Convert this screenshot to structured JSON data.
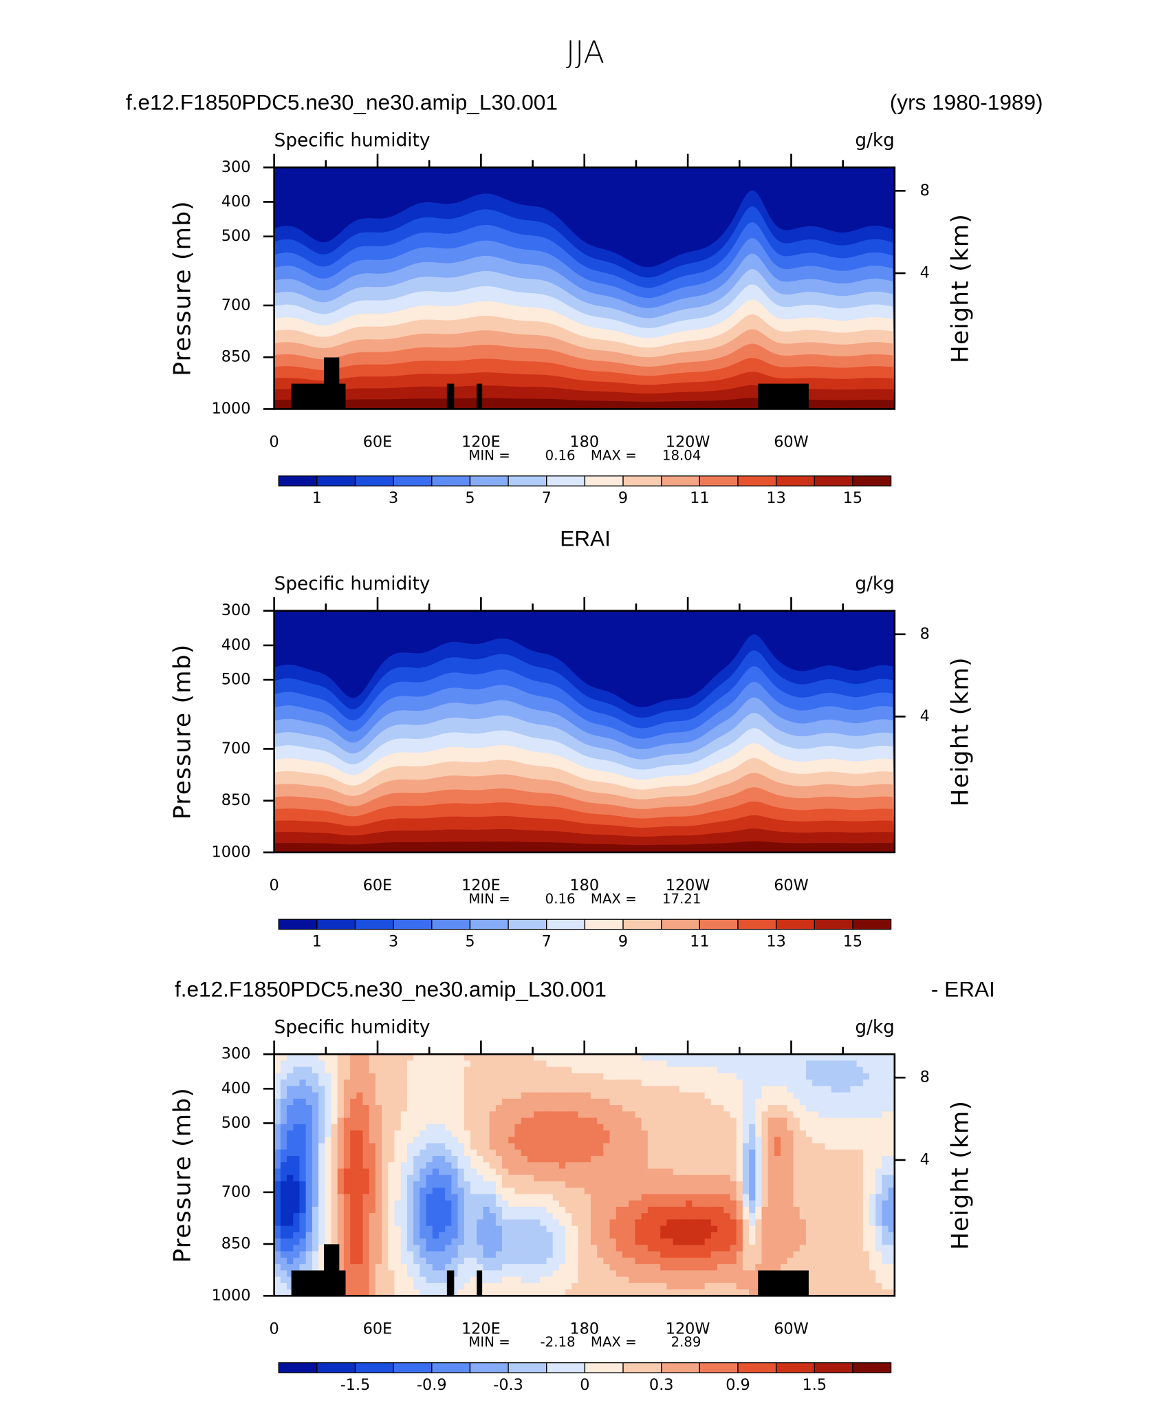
{
  "figure_title": "JJA",
  "chart_data": [
    {
      "type": "contour",
      "title_left": "f.e12.F1850PDC5.ne30_ne30.amip_L30.001",
      "title_right": "(yrs 1980-1989)",
      "subtitle": "Specific humidity",
      "units": "g/kg",
      "ylabel": "Pressure (mb)",
      "y2label": "Height (km)",
      "ylim": [
        1000,
        300
      ],
      "yticks": [
        300,
        400,
        500,
        700,
        850,
        1000
      ],
      "y2ticks": [
        4,
        8
      ],
      "xlim": [
        0,
        360
      ],
      "xticks": [
        0,
        {
          "value": 60,
          "label": "60E"
        },
        {
          "value": 120,
          "label": "120E"
        },
        180,
        {
          "value": 240,
          "label": "120W"
        },
        {
          "value": 300,
          "label": "60W"
        }
      ],
      "min_label": "MIN =",
      "min": 0.16,
      "max_label": "MAX =",
      "max": 18.04,
      "colorbar": {
        "colors": [
          "#03109c",
          "#0a2fc4",
          "#1a4fe0",
          "#3a6ef0",
          "#5d8cf5",
          "#86abf7",
          "#b1cbf8",
          "#d9e6fb",
          "#fdebdc",
          "#f9ccb0",
          "#f4a584",
          "#ef7b56",
          "#e6532f",
          "#cd3216",
          "#a91a0a",
          "#7c0a02"
        ],
        "labels": [
          1,
          3,
          5,
          7,
          9,
          11,
          13,
          15
        ]
      }
    },
    {
      "type": "contour",
      "title": "ERAI",
      "subtitle": "Specific humidity",
      "units": "g/kg",
      "ylabel": "Pressure (mb)",
      "y2label": "Height (km)",
      "ylim": [
        1000,
        300
      ],
      "yticks": [
        300,
        400,
        500,
        700,
        850,
        1000
      ],
      "y2ticks": [
        4,
        8
      ],
      "xlim": [
        0,
        360
      ],
      "xticks": [
        0,
        {
          "value": 60,
          "label": "60E"
        },
        {
          "value": 120,
          "label": "120E"
        },
        180,
        {
          "value": 240,
          "label": "120W"
        },
        {
          "value": 300,
          "label": "60W"
        }
      ],
      "min_label": "MIN =",
      "min": 0.16,
      "max_label": "MAX =",
      "max": 17.21,
      "colorbar": {
        "colors": [
          "#03109c",
          "#0a2fc4",
          "#1a4fe0",
          "#3a6ef0",
          "#5d8cf5",
          "#86abf7",
          "#b1cbf8",
          "#d9e6fb",
          "#fdebdc",
          "#f9ccb0",
          "#f4a584",
          "#ef7b56",
          "#e6532f",
          "#cd3216",
          "#a91a0a",
          "#7c0a02"
        ],
        "labels": [
          1,
          3,
          5,
          7,
          9,
          11,
          13,
          15
        ]
      }
    },
    {
      "type": "contour",
      "title_left": "f.e12.F1850PDC5.ne30_ne30.amip_L30.001",
      "title_right": "- ERAI",
      "subtitle": "Specific humidity",
      "units": "g/kg",
      "ylabel": "Pressure (mb)",
      "y2label": "Height (km)",
      "ylim": [
        1000,
        300
      ],
      "yticks": [
        300,
        400,
        500,
        700,
        850,
        1000
      ],
      "y2ticks": [
        4,
        8
      ],
      "xlim": [
        0,
        360
      ],
      "xticks": [
        0,
        {
          "value": 60,
          "label": "60E"
        },
        {
          "value": 120,
          "label": "120E"
        },
        180,
        {
          "value": 240,
          "label": "120W"
        },
        {
          "value": 300,
          "label": "60W"
        }
      ],
      "min_label": "MIN =",
      "min": -2.18,
      "max_label": "MAX =",
      "max": 2.89,
      "colorbar": {
        "colors": [
          "#03109c",
          "#0a2fc4",
          "#1a4fe0",
          "#3a6ef0",
          "#5d8cf5",
          "#86abf7",
          "#b1cbf8",
          "#d9e6fb",
          "#fdebdc",
          "#f9ccb0",
          "#f4a584",
          "#ef7b56",
          "#e6532f",
          "#cd3216",
          "#a91a0a",
          "#7c0a02"
        ],
        "labels": [
          -1.5,
          -0.9,
          -0.3,
          0,
          0.3,
          0.9,
          1.5
        ]
      }
    }
  ]
}
